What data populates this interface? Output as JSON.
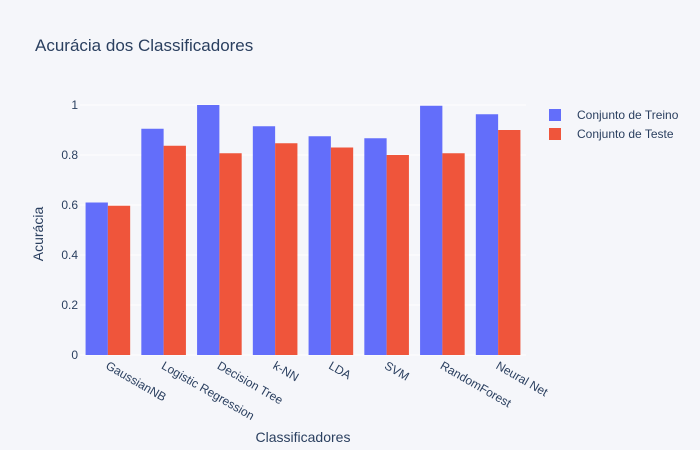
{
  "chart_data": {
    "type": "bar",
    "title": "Acurácia dos Classificadores",
    "xlabel": "Classificadores",
    "ylabel": "Acurácia",
    "ylim": [
      0,
      1.1
    ],
    "yticks": [
      0,
      0.2,
      0.4,
      0.6,
      0.8,
      1
    ],
    "ytick_labels": [
      "0",
      "0.2",
      "0.4",
      "0.6",
      "0.8",
      "1"
    ],
    "grid": true,
    "legend_position": "top-right",
    "categories": [
      "GaussianNB",
      "Logistic Regression",
      "Decision Tree",
      "k-NN",
      "LDA",
      "SVM",
      "RandomForest",
      "Neural Net"
    ],
    "series": [
      {
        "name": "Conjunto de Treino",
        "color": "#636efa",
        "values": [
          0.61,
          0.905,
          1.0,
          0.915,
          0.875,
          0.867,
          0.997,
          0.963
        ]
      },
      {
        "name": "Conjunto de Teste",
        "color": "#ef553b",
        "values": [
          0.597,
          0.837,
          0.807,
          0.847,
          0.83,
          0.8,
          0.807,
          0.9
        ]
      }
    ]
  }
}
